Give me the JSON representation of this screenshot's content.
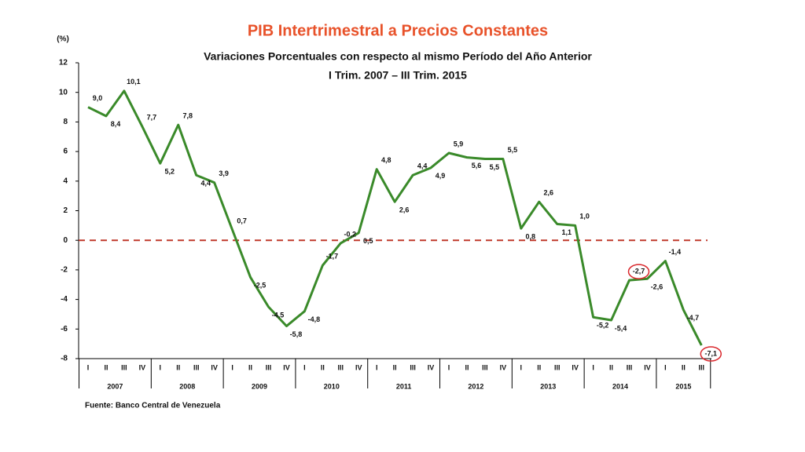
{
  "chart_data": {
    "type": "line",
    "title": "PIB Intertrimestral a Precios Constantes",
    "subtitle": "Variaciones Porcentuales con respecto al mismo Período del Año Anterior",
    "subtitle2": "I Trim. 2007 – III Trim. 2015",
    "y_label": "(%)",
    "source": "Fuente: Banco Central de Venezuela",
    "categories": [
      "I",
      "II",
      "III",
      "IV",
      "I",
      "II",
      "III",
      "IV",
      "I",
      "II",
      "III",
      "IV",
      "I",
      "II",
      "III",
      "IV",
      "I",
      "II",
      "III",
      "IV",
      "I",
      "II",
      "III",
      "IV",
      "I",
      "II",
      "III",
      "IV",
      "I",
      "II",
      "III",
      "IV",
      "I",
      "II",
      "III"
    ],
    "years": [
      "2007",
      "2008",
      "2009",
      "2010",
      "2011",
      "2012",
      "2013",
      "2014",
      "2015"
    ],
    "series": [
      {
        "name": "PIB",
        "color": "#3a8a2a",
        "values": [
          9.0,
          8.4,
          10.1,
          7.7,
          5.2,
          7.8,
          4.4,
          3.9,
          0.7,
          -2.5,
          -4.5,
          -5.8,
          -4.8,
          -1.7,
          -0.2,
          0.5,
          4.8,
          2.6,
          4.4,
          4.9,
          5.9,
          5.6,
          5.5,
          5.5,
          0.8,
          2.6,
          1.1,
          1.0,
          -5.2,
          -5.4,
          -2.7,
          -2.6,
          -1.4,
          -4.7,
          -7.1
        ],
        "value_labels": [
          "9,0",
          "8,4",
          "10,1",
          "7,7",
          "5,2",
          "7,8",
          "4,4",
          "3,9",
          "0,7",
          "-2,5",
          "-4,5",
          "-5,8",
          "-4,8",
          "-1,7",
          "-0,2",
          "0,5",
          "4,8",
          "2,6",
          "4,4",
          "4,9",
          "5,9",
          "5,6",
          "5,5",
          "5,5",
          "0,8",
          "2,6",
          "1,1",
          "1,0",
          "-5,2",
          "-5,4",
          "-2,7",
          "-2,6",
          "-1,4",
          "-4,7",
          "-7,1"
        ]
      }
    ],
    "ylim": [
      -8,
      12
    ],
    "yticks": [
      -8,
      -6,
      -4,
      -2,
      0,
      2,
      4,
      6,
      8,
      10,
      12
    ],
    "reference_line": 0,
    "reference_color": "#c0392b",
    "highlighted_points": [
      30,
      34
    ],
    "highlight_color": "#d9262b",
    "title_color": "#e8522a"
  }
}
